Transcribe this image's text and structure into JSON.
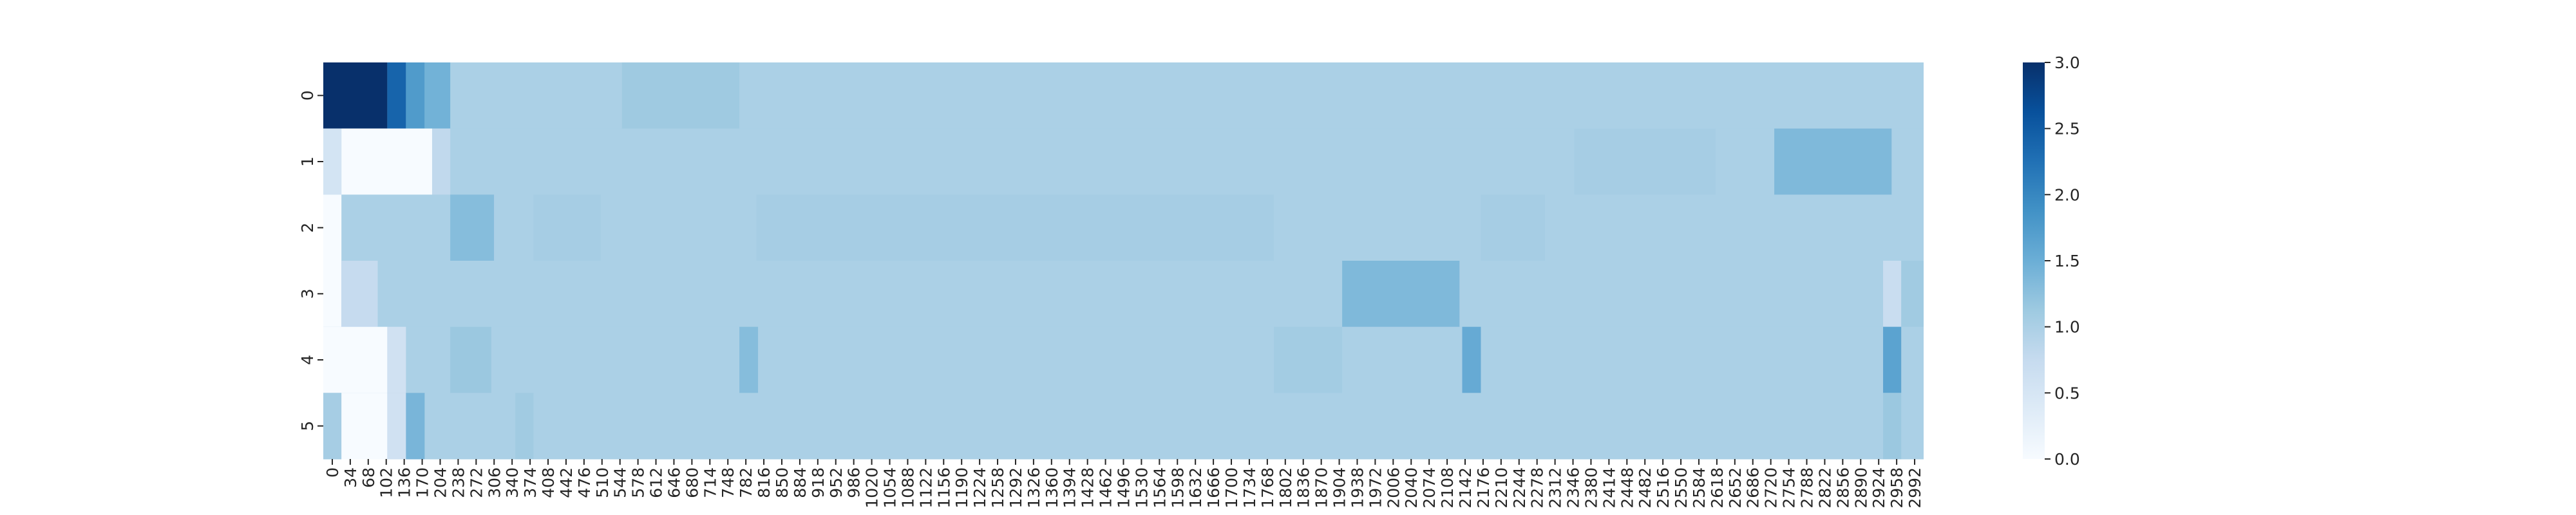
{
  "chart_data": {
    "type": "heatmap",
    "title": "",
    "xlabel": "",
    "ylabel": "",
    "colormap": "Blues",
    "colormap_stops": [
      "#f7fbff",
      "#deebf7",
      "#c6dbef",
      "#9ecae1",
      "#6baed6",
      "#4292c6",
      "#2171b5",
      "#08519c",
      "#08306b"
    ],
    "vmin": 0,
    "vmax": 3,
    "x_range": [
      0,
      3000
    ],
    "x_tick_labels": [
      "0",
      "34",
      "68",
      "102",
      "136",
      "170",
      "204",
      "238",
      "272",
      "306",
      "340",
      "374",
      "408",
      "442",
      "476",
      "510",
      "544",
      "578",
      "612",
      "646",
      "680",
      "714",
      "748",
      "782",
      "816",
      "850",
      "884",
      "918",
      "952",
      "986",
      "1020",
      "1054",
      "1088",
      "1122",
      "1156",
      "1190",
      "1224",
      "1258",
      "1292",
      "1326",
      "1360",
      "1394",
      "1428",
      "1462",
      "1496",
      "1530",
      "1564",
      "1598",
      "1632",
      "1666",
      "1700",
      "1734",
      "1768",
      "1802",
      "1836",
      "1870",
      "1904",
      "1938",
      "1972",
      "2006",
      "2040",
      "2074",
      "2108",
      "2142",
      "2176",
      "2210",
      "2244",
      "2278",
      "2312",
      "2346",
      "2380",
      "2414",
      "2448",
      "2482",
      "2516",
      "2550",
      "2584",
      "2618",
      "2652",
      "2686",
      "2720",
      "2754",
      "2788",
      "2822",
      "2856",
      "2890",
      "2924",
      "2958",
      "2992"
    ],
    "y_tick_labels": [
      "0",
      "1",
      "2",
      "3",
      "4",
      "5"
    ],
    "colorbar_ticks": [
      "0.0",
      "0.5",
      "1.0",
      "1.5",
      "2.0",
      "2.5",
      "3.0"
    ],
    "colorbar_tick_values": [
      0,
      0.5,
      1.0,
      1.5,
      2.0,
      2.5,
      3.0
    ],
    "default_value": 1.0,
    "rows": [
      {
        "label": "0",
        "segments": [
          {
            "x0": 0,
            "x1": 120,
            "value": 3.0
          },
          {
            "x0": 120,
            "x1": 155,
            "value": 2.4
          },
          {
            "x0": 155,
            "x1": 190,
            "value": 1.75
          },
          {
            "x0": 190,
            "x1": 238,
            "value": 1.45
          },
          {
            "x0": 560,
            "x1": 780,
            "value": 1.12
          }
        ]
      },
      {
        "label": "1",
        "segments": [
          {
            "x0": 0,
            "x1": 34,
            "value": 0.55
          },
          {
            "x0": 34,
            "x1": 204,
            "value": 0.0
          },
          {
            "x0": 204,
            "x1": 238,
            "value": 0.8
          },
          {
            "x0": 2345,
            "x1": 2610,
            "value": 1.05
          },
          {
            "x0": 2720,
            "x1": 2940,
            "value": 1.35
          }
        ]
      },
      {
        "label": "2",
        "segments": [
          {
            "x0": 0,
            "x1": 34,
            "value": 0.0
          },
          {
            "x0": 238,
            "x1": 320,
            "value": 1.3
          },
          {
            "x0": 394,
            "x1": 520,
            "value": 1.05
          },
          {
            "x0": 812,
            "x1": 1782,
            "value": 1.05
          },
          {
            "x0": 2170,
            "x1": 2290,
            "value": 1.05
          }
        ]
      },
      {
        "label": "3",
        "segments": [
          {
            "x0": 0,
            "x1": 34,
            "value": 0.0
          },
          {
            "x0": 34,
            "x1": 102,
            "value": 0.75
          },
          {
            "x0": 1910,
            "x1": 2130,
            "value": 1.35
          },
          {
            "x0": 2924,
            "x1": 2958,
            "value": 0.7
          },
          {
            "x0": 2958,
            "x1": 3000,
            "value": 1.1
          }
        ]
      },
      {
        "label": "4",
        "segments": [
          {
            "x0": 0,
            "x1": 120,
            "value": 0.0
          },
          {
            "x0": 120,
            "x1": 155,
            "value": 0.6
          },
          {
            "x0": 238,
            "x1": 315,
            "value": 1.15
          },
          {
            "x0": 780,
            "x1": 815,
            "value": 1.3
          },
          {
            "x0": 1782,
            "x1": 1910,
            "value": 1.08
          },
          {
            "x0": 2135,
            "x1": 2170,
            "value": 1.55
          },
          {
            "x0": 2924,
            "x1": 2958,
            "value": 1.65
          }
        ]
      },
      {
        "label": "5",
        "segments": [
          {
            "x0": 0,
            "x1": 34,
            "value": 1.05
          },
          {
            "x0": 34,
            "x1": 120,
            "value": 0.0
          },
          {
            "x0": 120,
            "x1": 155,
            "value": 0.6
          },
          {
            "x0": 155,
            "x1": 190,
            "value": 1.4
          },
          {
            "x0": 360,
            "x1": 394,
            "value": 1.1
          },
          {
            "x0": 2924,
            "x1": 2958,
            "value": 1.15
          }
        ]
      }
    ]
  }
}
